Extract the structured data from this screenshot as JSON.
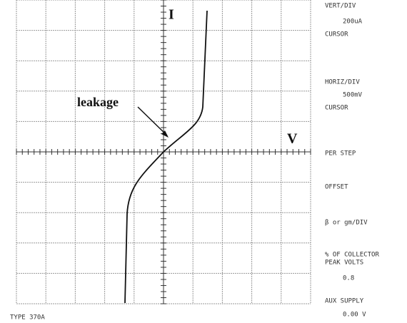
{
  "screen": {
    "axis_labels": {
      "current": "I",
      "voltage": "V"
    },
    "annotation": "leakage",
    "footer": "TYPE 370A",
    "panel": [
      {
        "label": "VERT/DIV",
        "value": "200uA"
      },
      {
        "label": "CURSOR"
      },
      {
        "label": "HORIZ/DIV",
        "value": "500mV"
      },
      {
        "label": "CURSOR"
      },
      {
        "label": "PER STEP"
      },
      {
        "label": "OFFSET"
      },
      {
        "label": "β or gm/DIV"
      },
      {
        "label": "% OF COLLECTOR",
        "label2": "PEAK VOLTS",
        "value": "0.8"
      },
      {
        "label": "AUX SUPPLY",
        "value": "0.00 V"
      }
    ]
  }
}
